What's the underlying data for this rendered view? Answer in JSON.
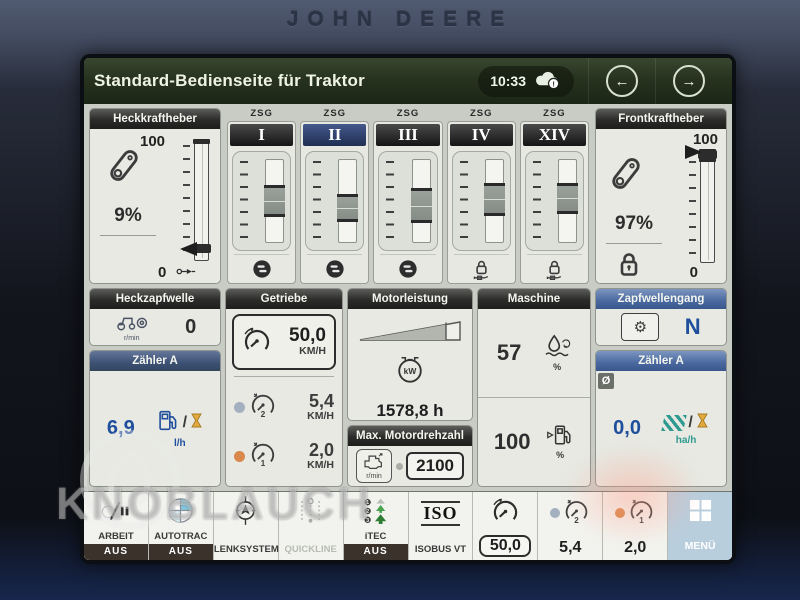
{
  "bezel": {
    "brand": "John Deere"
  },
  "header": {
    "title": "Standard-Bedienseite für Traktor",
    "time": "10:33"
  },
  "rear_hitch": {
    "title": "Heckkraftheber",
    "value": "9%",
    "scale_max": "100",
    "scale_min": "0",
    "position_pct": 9
  },
  "front_hitch": {
    "title": "Frontkraftheber",
    "value": "97%",
    "scale_max": "100",
    "scale_min": "0",
    "position_pct": 97,
    "locked": true
  },
  "zsg": {
    "label": "ZSG",
    "channels": [
      {
        "id": "I",
        "selected": false,
        "locked": false,
        "handle_top_pct": 30,
        "handle_height_pct": 32
      },
      {
        "id": "II",
        "selected": true,
        "locked": false,
        "handle_top_pct": 42,
        "handle_height_pct": 26
      },
      {
        "id": "III",
        "selected": false,
        "locked": false,
        "handle_top_pct": 34,
        "handle_height_pct": 36
      },
      {
        "id": "IV",
        "selected": false,
        "locked": true,
        "handle_top_pct": 28,
        "handle_height_pct": 33
      },
      {
        "id": "XIV",
        "selected": false,
        "locked": true,
        "handle_top_pct": 28,
        "handle_height_pct": 30
      }
    ]
  },
  "rear_pto": {
    "title": "Heckzapfwelle",
    "value": "0",
    "unit": "r/min"
  },
  "counter_left": {
    "title": "Zähler A",
    "value": "6,9",
    "unit": "l/h"
  },
  "gearbox": {
    "title": "Getriebe",
    "rows": [
      {
        "value": "50,0",
        "unit": "KM/H",
        "gear": ""
      },
      {
        "value": "5,4",
        "unit": "KM/H",
        "gear": "2",
        "dot_color": "#a4b0bf"
      },
      {
        "value": "2,0",
        "unit": "KM/H",
        "gear": "1",
        "dot_color": "#d8894b"
      }
    ]
  },
  "engine_power": {
    "title": "Motorleistung",
    "icon_label": "kW",
    "hours": "1578,8 h",
    "load_pct": 86
  },
  "max_engine_speed": {
    "title": "Max. Motordrehzahl",
    "value": "2100",
    "unit": "r/min"
  },
  "machine": {
    "title": "Maschine",
    "rows": [
      {
        "value": "57",
        "unit": "%"
      },
      {
        "value": "100",
        "unit": "%"
      }
    ]
  },
  "pto_gear": {
    "title": "Zapfwellengang",
    "value": "N"
  },
  "counter_right": {
    "title": "Zähler A",
    "badge": "Ø",
    "value": "0,0",
    "unit": "ha/h"
  },
  "toolbar": {
    "buttons": [
      {
        "name": "arbeit",
        "label": "ARBEIT",
        "state": "AUS",
        "icon": "work-pause-icon"
      },
      {
        "name": "autotrac",
        "label": "AUTOTRAC",
        "state": "AUS",
        "icon": "autotrac-icon"
      },
      {
        "name": "lenksystem",
        "label": "LENKSYSTEM",
        "icon": "steering-icon"
      },
      {
        "name": "quickline",
        "label": "QUICKLINE",
        "disabled": true,
        "icon": "quickline-icon"
      },
      {
        "name": "itec",
        "label": "iTEC",
        "state": "AUS",
        "icon": "itec-icon"
      },
      {
        "name": "isobus-vt",
        "label": "ISOBUS VT",
        "icon": "isobus-icon",
        "icon_text": "ISO"
      },
      {
        "name": "target-speed",
        "value": "50,0",
        "boxed": true,
        "icon": "speedo-target-icon"
      },
      {
        "name": "speed-gear2",
        "value": "5,4",
        "gear": "2",
        "dot_color": "#a4b0bf",
        "icon": "speedo-icon"
      },
      {
        "name": "speed-gear1",
        "value": "2,0",
        "gear": "1",
        "dot_color": "#d8894b",
        "icon": "speedo-icon"
      },
      {
        "name": "menu",
        "label": "MENÜ",
        "accent": true,
        "icon": "menu-grid-icon"
      }
    ]
  },
  "watermark": {
    "text": "KNOBLAUCH"
  },
  "colors": {
    "accent_blue": "#1f4e9c",
    "teal": "#2f9a8f",
    "amber": "#e2aa3e",
    "header_green": "#27331f",
    "selected_navy": "#2c3f6b"
  }
}
